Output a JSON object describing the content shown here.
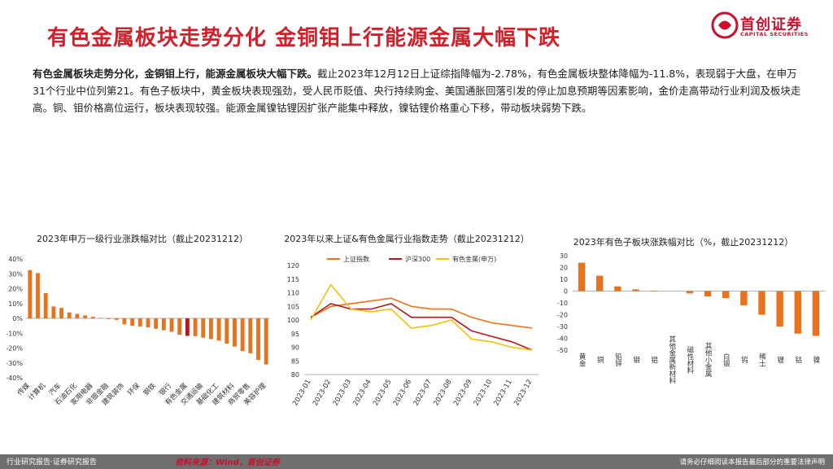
{
  "header": {
    "title": "有色金属板块走势分化 金铜钼上行能源金属大幅下跌",
    "logo_name": "首创证券",
    "logo_sub": "CAPITAL SECURITIES",
    "logo_color": "#c8102e"
  },
  "summary": {
    "lead": "有色金属板块走势分化，金铜钼上行，能源金属板块大幅下跌。",
    "body": "截止2023年12月12日上证综指降幅为-2.78%，有色金属板块整体降幅为-11.8%，表现弱于大盘，在申万31个行业中位列第21。有色子板块中，黄金板块表现强劲，受人民币贬值、央行持续购金、美国通胀回落引发的停止加息预期等因素影响，金价走高带动行业利润及板块走高。铜、钼价格高位运行，板块表现较强。能源金属镍钴锂因扩张产能集中释放，镍钴锂价格重心下移，带动板块弱势下跌。"
  },
  "chart_data": [
    {
      "type": "bar",
      "title": "2023年申万一级行业涨跌幅对比（截止20231212）",
      "yticks": [
        "40%",
        "30%",
        "20%",
        "10%",
        "0%",
        "-10%",
        "-20%",
        "-30%",
        "-40%"
      ],
      "ylim": [
        -40,
        40
      ],
      "categories": [
        "传媒",
        "",
        "计算机",
        "",
        "汽车",
        "",
        "石油石化",
        "",
        "家用电器",
        "",
        "非银金融",
        "",
        "建筑装饰",
        "",
        "环保",
        "",
        "钢铁",
        "",
        "银行",
        "",
        "有色金属",
        "",
        "交通运输",
        "",
        "基础化工",
        "",
        "建筑材料",
        "",
        "商贸零售",
        "",
        "美容护理"
      ],
      "values": [
        32.5,
        30.5,
        17,
        8,
        7,
        4,
        3,
        2,
        1,
        0.3,
        -0.5,
        -1,
        -4,
        -5,
        -5.5,
        -6,
        -7,
        -8,
        -9,
        -11,
        -11.8,
        -12,
        -13,
        -14,
        -15,
        -17,
        -19,
        -22,
        -23.5,
        -28,
        -31
      ],
      "highlight_index": 20,
      "bar_color": "#e8731f",
      "highlight_color": "#b3181f"
    },
    {
      "type": "line",
      "title": "2023年以来上证&有色金属行业指数走势（截止20231212）",
      "yticks": [
        120,
        115,
        110,
        105,
        100,
        95,
        90,
        85,
        80
      ],
      "ylim": [
        80,
        120
      ],
      "xticks": [
        "2023-01",
        "2023-02",
        "2023-03",
        "2023-04",
        "2023-05",
        "2023-06",
        "2023-07",
        "2023-08",
        "2023-09",
        "2023-10",
        "2023-11",
        "2023-12"
      ],
      "x": [
        "2023-01",
        "2023-02",
        "2023-03",
        "2023-04",
        "2023-05",
        "2023-06",
        "2023-07",
        "2023-08",
        "2023-09",
        "2023-10",
        "2023-11",
        "2023-12"
      ],
      "series": [
        {
          "name": "上证指数",
          "color": "#e8731f",
          "values": [
            101,
            105,
            106,
            107,
            108,
            105,
            104,
            104,
            101,
            99,
            98,
            97
          ]
        },
        {
          "name": "沪深300",
          "color": "#b3181f",
          "values": [
            101,
            106,
            104,
            104,
            106,
            101,
            101,
            101,
            96,
            94,
            92,
            89
          ]
        },
        {
          "name": "有色金属(申万)",
          "color": "#f2c00f",
          "values": [
            100,
            113,
            104,
            103,
            104,
            97,
            98,
            100,
            93,
            92,
            90,
            89
          ]
        }
      ]
    },
    {
      "type": "bar",
      "title": "2023年有色子板块涨跌幅对比（%，截止20231212）",
      "yticks": [
        30,
        20,
        10,
        0,
        -10,
        -20,
        -30,
        -40,
        -50
      ],
      "ylim": [
        -50,
        30
      ],
      "categories": [
        "黄金",
        "铜",
        "铅锌",
        "钼",
        "铝",
        "其他金属新材料",
        "磁性材料",
        "其他小金属",
        "白银",
        "钨",
        "稀土",
        "锂",
        "钴",
        "镍"
      ],
      "values": [
        24,
        13,
        4,
        1.5,
        0.3,
        0,
        -2,
        -4.5,
        -6,
        -12,
        -20,
        -30,
        -36,
        -38
      ],
      "bar_color": "#e8731f"
    }
  ],
  "footer": {
    "left": "行业研究报告·证券研究报告",
    "source": "资料来源：Wind，首创证券",
    "right": "请务必仔细阅读本报告最后部分的重要法律声明"
  }
}
